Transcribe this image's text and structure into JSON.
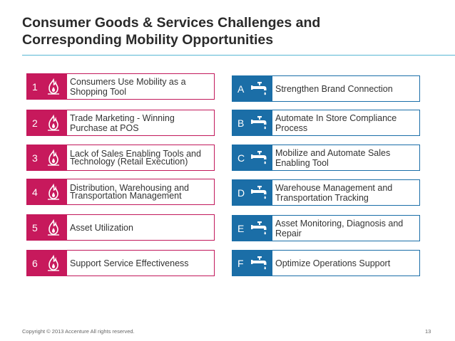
{
  "slide": {
    "title_line1": "Consumer Goods & Services Challenges and",
    "title_line2": "Corresponding Mobility Opportunities",
    "footer": "Copyright © 2013 Accenture  All rights reserved.",
    "page_number": "13"
  },
  "challenges": [
    {
      "num": "1",
      "label": "Consumers Use Mobility as a Shopping Tool",
      "icon": "fire-icon"
    },
    {
      "num": "2",
      "label": "Trade Marketing - Winning Purchase at POS",
      "icon": "fire-icon"
    },
    {
      "num": "3",
      "label": "Lack of Sales Enabling Tools and Technology (Retail Execution)",
      "icon": "fire-icon"
    },
    {
      "num": "4",
      "label": "Distribution, Warehousing and Transportation Management",
      "icon": "fire-icon"
    },
    {
      "num": "5",
      "label": "Asset Utilization",
      "icon": "fire-icon"
    },
    {
      "num": "6",
      "label": "Support Service Effectiveness",
      "icon": "fire-icon"
    }
  ],
  "opportunities": [
    {
      "letter": "A",
      "label": "Strengthen Brand Connection",
      "icon": "faucet-icon"
    },
    {
      "letter": "B",
      "label": "Automate In Store Compliance Process",
      "icon": "faucet-icon"
    },
    {
      "letter": "C",
      "label": "Mobilize and Automate Sales Enabling Tool",
      "icon": "faucet-icon"
    },
    {
      "letter": "D",
      "label": "Warehouse Management and Transportation Tracking",
      "icon": "faucet-icon"
    },
    {
      "letter": "E",
      "label": "Asset Monitoring, Diagnosis and Repair",
      "icon": "faucet-icon"
    },
    {
      "letter": "F",
      "label": "Optimize Operations Support",
      "icon": "faucet-icon"
    }
  ],
  "colors": {
    "challenge_accent": "#c7195c",
    "opportunity_accent": "#1b6ea7",
    "title_rule": "#58b7d4"
  }
}
